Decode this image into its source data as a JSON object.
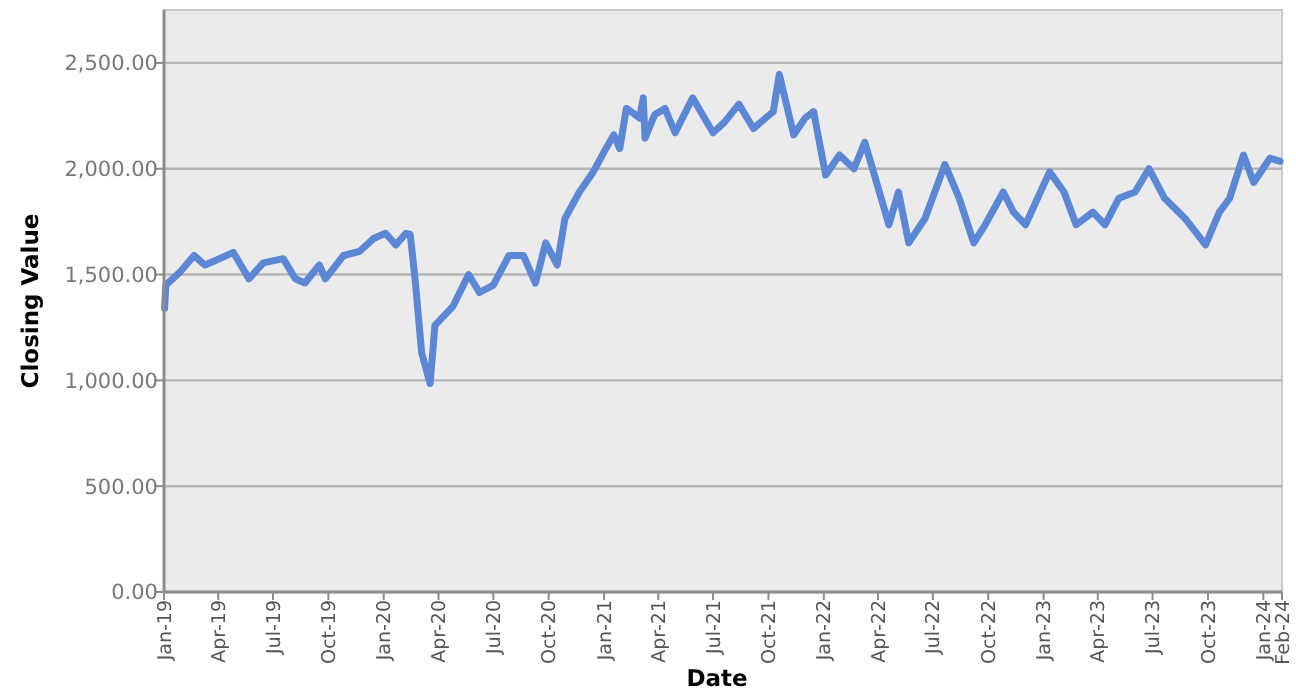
{
  "chart_data": {
    "type": "line",
    "xlabel": "Date",
    "ylabel": "Closing Value",
    "x": [
      "2019-01-02",
      "2019-01-04",
      "2019-01-27",
      "2019-02-20",
      "2019-03-10",
      "2019-04-03",
      "2019-04-26",
      "2019-05-22",
      "2019-06-15",
      "2019-07-18",
      "2019-08-07",
      "2019-08-23",
      "2019-09-16",
      "2019-09-26",
      "2019-10-26",
      "2019-11-22",
      "2019-12-15",
      "2020-01-04",
      "2020-01-21",
      "2020-02-07",
      "2020-02-14",
      "2020-02-22",
      "2020-03-04",
      "2020-03-18",
      "2020-03-26",
      "2020-04-25",
      "2020-05-21",
      "2020-06-08",
      "2020-07-01",
      "2020-07-27",
      "2020-08-20",
      "2020-09-09",
      "2020-09-26",
      "2020-10-15",
      "2020-10-28",
      "2020-11-21",
      "2020-12-14",
      "2021-01-01",
      "2021-01-17",
      "2021-01-27",
      "2021-02-07",
      "2021-03-01",
      "2021-03-07",
      "2021-03-10",
      "2021-03-26",
      "2021-04-12",
      "2021-04-29",
      "2021-05-28",
      "2021-07-01",
      "2021-07-20",
      "2021-08-13",
      "2021-09-06",
      "2021-10-09",
      "2021-10-19",
      "2021-11-12",
      "2021-12-01",
      "2021-12-15",
      "2022-01-04",
      "2022-01-27",
      "2022-02-20",
      "2022-03-10",
      "2022-03-26",
      "2022-04-19",
      "2022-05-05",
      "2022-05-22",
      "2022-06-18",
      "2022-07-21",
      "2022-08-14",
      "2022-09-07",
      "2022-09-26",
      "2022-10-26",
      "2022-11-12",
      "2022-12-02",
      "2023-01-11",
      "2023-02-04",
      "2023-02-24",
      "2023-03-24",
      "2023-04-13",
      "2023-05-06",
      "2023-06-02",
      "2023-06-25",
      "2023-07-21",
      "2023-08-24",
      "2023-09-27",
      "2023-10-20",
      "2023-11-06",
      "2023-11-29",
      "2023-12-16",
      "2024-01-12",
      "2024-01-29"
    ],
    "series": [
      {
        "color": "#5b87d4",
        "values": [
          1340,
          1450,
          1510,
          1590,
          1545,
          1575,
          1605,
          1480,
          1555,
          1575,
          1480,
          1460,
          1545,
          1480,
          1590,
          1610,
          1670,
          1695,
          1640,
          1695,
          1690,
          1480,
          1130,
          985,
          1260,
          1350,
          1500,
          1415,
          1450,
          1590,
          1590,
          1460,
          1650,
          1545,
          1765,
          1890,
          1985,
          2080,
          2160,
          2095,
          2285,
          2240,
          2335,
          2145,
          2255,
          2285,
          2170,
          2335,
          2170,
          2220,
          2305,
          2190,
          2270,
          2445,
          2160,
          2240,
          2270,
          1970,
          2065,
          2000,
          2125,
          1970,
          1735,
          1890,
          1650,
          1765,
          2020,
          1860,
          1650,
          1735,
          1890,
          1795,
          1735,
          1985,
          1890,
          1735,
          1795,
          1735,
          1860,
          1890,
          2000,
          1860,
          1765,
          1640,
          1795,
          1860,
          2065,
          1935,
          2050,
          2035
        ]
      }
    ],
    "xlim": [
      "2019-01-01",
      "2024-02-01"
    ],
    "xticks": [
      {
        "value": "2019-01-01",
        "label": "Jan-19"
      },
      {
        "value": "2019-04-01",
        "label": "Apr-19"
      },
      {
        "value": "2019-07-01",
        "label": "Jul-19"
      },
      {
        "value": "2019-10-01",
        "label": "Oct-19"
      },
      {
        "value": "2020-01-01",
        "label": "Jan-20"
      },
      {
        "value": "2020-04-01",
        "label": "Apr-20"
      },
      {
        "value": "2020-07-01",
        "label": "Jul-20"
      },
      {
        "value": "2020-10-01",
        "label": "Oct-20"
      },
      {
        "value": "2021-01-01",
        "label": "Jan-21"
      },
      {
        "value": "2021-04-01",
        "label": "Apr-21"
      },
      {
        "value": "2021-07-01",
        "label": "Jul-21"
      },
      {
        "value": "2021-10-01",
        "label": "Oct-21"
      },
      {
        "value": "2022-01-01",
        "label": "Jan-22"
      },
      {
        "value": "2022-04-01",
        "label": "Apr-22"
      },
      {
        "value": "2022-07-01",
        "label": "Jul-22"
      },
      {
        "value": "2022-10-01",
        "label": "Oct-22"
      },
      {
        "value": "2023-01-01",
        "label": "Jan-23"
      },
      {
        "value": "2023-04-01",
        "label": "Apr-23"
      },
      {
        "value": "2023-07-01",
        "label": "Jul-23"
      },
      {
        "value": "2023-10-01",
        "label": "Oct-23"
      },
      {
        "value": "2024-01-01",
        "label": "Jan-24"
      },
      {
        "value": "2024-02-01",
        "label": "Feb-24"
      }
    ],
    "ylim": [
      0,
      2750
    ],
    "yticks": [
      {
        "value": 0,
        "label": "0.00"
      },
      {
        "value": 500,
        "label": "500.00"
      },
      {
        "value": 1000,
        "label": "1,000.00"
      },
      {
        "value": 1500,
        "label": "1,500.00"
      },
      {
        "value": 2000,
        "label": "2,000.00"
      },
      {
        "value": 2500,
        "label": "2,500.00"
      }
    ],
    "grid": "y",
    "marker": "none",
    "line_style": "solid"
  }
}
